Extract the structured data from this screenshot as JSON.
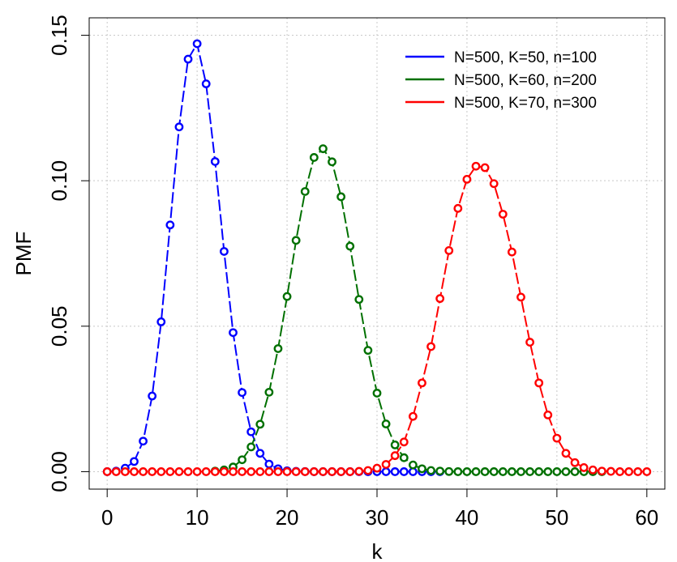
{
  "chart_data": {
    "type": "line",
    "title": "",
    "xlabel": "k",
    "ylabel": "PMF",
    "xlim": [
      -2,
      62
    ],
    "ylim": [
      -0.006,
      0.156
    ],
    "x_ticks": [
      0,
      10,
      20,
      30,
      40,
      50,
      60
    ],
    "x_tick_labels": [
      "0",
      "10",
      "20",
      "30",
      "40",
      "50",
      "60"
    ],
    "y_ticks": [
      0.0,
      0.05,
      0.1,
      0.15
    ],
    "y_tick_labels": [
      "0.00",
      "0.05",
      "0.10",
      "0.15"
    ],
    "grid": true,
    "legend_position": "top-right",
    "markers": "open-circles",
    "series": [
      {
        "name": "N=500, K=50, n=100",
        "color": "#0000ff",
        "x": [
          0,
          1,
          2,
          3,
          4,
          5,
          6,
          7,
          8,
          9,
          10,
          11,
          12,
          13,
          14,
          15,
          16,
          17,
          18,
          19,
          20,
          21,
          22,
          23,
          24,
          25,
          26,
          27,
          28,
          29,
          30,
          31,
          32,
          33,
          34,
          35,
          36,
          37
        ],
        "values": [
          1e-05,
          0.0002,
          0.0012,
          0.0035,
          0.0105,
          0.026,
          0.0515,
          0.0848,
          0.1185,
          0.1418,
          0.1471,
          0.1333,
          0.1066,
          0.0757,
          0.0478,
          0.0272,
          0.0137,
          0.0063,
          0.0026,
          0.001,
          0.0003,
          0.0001,
          3e-05,
          0,
          0,
          0,
          0,
          0,
          0,
          0,
          0,
          0,
          0,
          0,
          0,
          0,
          0,
          0
        ]
      },
      {
        "name": "N=500, K=60, n=200",
        "color": "#007000",
        "x": [
          12,
          13,
          14,
          15,
          16,
          17,
          18,
          19,
          20,
          21,
          22,
          23,
          24,
          25,
          26,
          27,
          28,
          29,
          30,
          31,
          32,
          33,
          34,
          35,
          36,
          37,
          38,
          39,
          40,
          41,
          42,
          43,
          44,
          45,
          46,
          47,
          48,
          49,
          50,
          51,
          52,
          53,
          54,
          55
        ],
        "values": [
          0.0002,
          0.0006,
          0.0016,
          0.0041,
          0.0085,
          0.0163,
          0.0273,
          0.0423,
          0.0602,
          0.0795,
          0.0963,
          0.108,
          0.111,
          0.1065,
          0.0945,
          0.0775,
          0.0592,
          0.0417,
          0.027,
          0.0164,
          0.0092,
          0.0048,
          0.0023,
          0.001,
          0.0004,
          0.0002,
          5e-05,
          0,
          0,
          0,
          0,
          0,
          0,
          0,
          0,
          0,
          0,
          0,
          0,
          0,
          0,
          0,
          0,
          0
        ]
      },
      {
        "name": "N=500, K=70, n=300",
        "color": "#ff0000",
        "x": [
          0,
          1,
          2,
          3,
          4,
          5,
          6,
          7,
          8,
          9,
          10,
          11,
          12,
          13,
          14,
          15,
          16,
          17,
          18,
          19,
          20,
          21,
          22,
          23,
          24,
          25,
          26,
          27,
          28,
          29,
          30,
          31,
          32,
          33,
          34,
          35,
          36,
          37,
          38,
          39,
          40,
          41,
          42,
          43,
          44,
          45,
          46,
          47,
          48,
          49,
          50,
          51,
          52,
          53,
          54,
          55,
          56,
          57,
          58,
          59,
          60
        ],
        "values": [
          0,
          0,
          0,
          0,
          0,
          0,
          0,
          0,
          0,
          0,
          0,
          0,
          0,
          0,
          0,
          0,
          0,
          0,
          0,
          0,
          0,
          0,
          0,
          0,
          0,
          0,
          0,
          0,
          0.0001,
          0.0004,
          0.0012,
          0.0025,
          0.0055,
          0.0102,
          0.019,
          0.0305,
          0.043,
          0.0595,
          0.076,
          0.0905,
          0.1005,
          0.105,
          0.1045,
          0.099,
          0.0885,
          0.0755,
          0.06,
          0.0445,
          0.0305,
          0.0195,
          0.0115,
          0.0063,
          0.0031,
          0.0014,
          0.0006,
          0.0002,
          0.0001,
          0,
          0,
          0,
          0
        ]
      }
    ]
  }
}
